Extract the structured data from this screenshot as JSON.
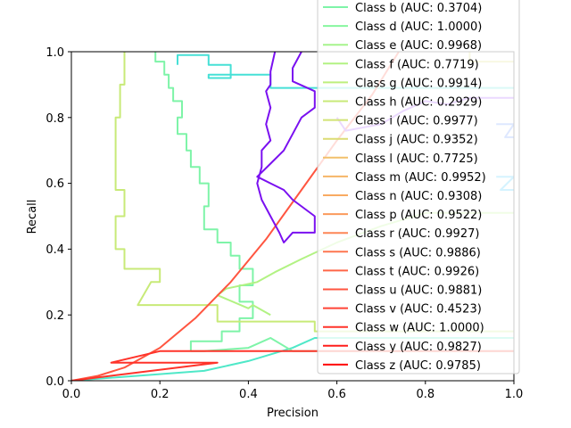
{
  "chart_data": {
    "type": "line",
    "title": "",
    "xlabel": "Precision",
    "ylabel": "Recall",
    "xlim": [
      0.0,
      1.0
    ],
    "ylim": [
      0.0,
      1.0
    ],
    "x_ticks": [
      "0.0",
      "0.2",
      "0.4",
      "0.6",
      "0.8",
      "1.0"
    ],
    "y_ticks": [
      "0.0",
      "0.2",
      "0.4",
      "0.6",
      "0.8",
      "1.0"
    ],
    "grid": false,
    "legend_position": "upper-right",
    "legend_entries": [
      {
        "label": "Class b (AUC: 0.3704)",
        "color": "#7ef4a8"
      },
      {
        "label": "Class d (AUC: 1.0000)",
        "color": "#86f69f"
      },
      {
        "label": "Class e (AUC: 0.9968)",
        "color": "#a6f48c"
      },
      {
        "label": "Class f (AUC: 0.7719)",
        "color": "#b2f283"
      },
      {
        "label": "Class g (AUC: 0.9914)",
        "color": "#bdef7d"
      },
      {
        "label": "Class h (AUC: 0.2929)",
        "color": "#c8ea78"
      },
      {
        "label": "Class i (AUC: 0.9977)",
        "color": "#d2e375"
      },
      {
        "label": "Class j (AUC: 0.9352)",
        "color": "#dcdc73"
      },
      {
        "label": "Class l (AUC: 0.7725)",
        "color": "#f2c06b"
      },
      {
        "label": "Class m (AUC: 0.9952)",
        "color": "#f6b567"
      },
      {
        "label": "Class n (AUC: 0.9308)",
        "color": "#f9aa62"
      },
      {
        "label": "Class p (AUC: 0.9522)",
        "color": "#fb9a5c"
      },
      {
        "label": "Class r (AUC: 0.9927)",
        "color": "#fd8656"
      },
      {
        "label": "Class s (AUC: 0.9886)",
        "color": "#fe7650"
      },
      {
        "label": "Class t (AUC: 0.9926)",
        "color": "#ff6648"
      },
      {
        "label": "Class u (AUC: 0.9881)",
        "color": "#ff5540"
      },
      {
        "label": "Class v (AUC: 0.4523)",
        "color": "#ff4436"
      },
      {
        "label": "Class w (AUC: 1.0000)",
        "color": "#ff332a"
      },
      {
        "label": "Class y (AUC: 0.9827)",
        "color": "#ff1d1a"
      },
      {
        "label": "Class z (AUC: 0.9785)",
        "color": "#ff0000"
      }
    ],
    "series": [
      {
        "color": "#4fe8c8",
        "points": [
          [
            0.0,
            0.0
          ],
          [
            0.3,
            0.03
          ],
          [
            0.4,
            0.06
          ],
          [
            0.5,
            0.1
          ],
          [
            0.55,
            0.13
          ],
          [
            1.0,
            0.13
          ]
        ]
      },
      {
        "color": "#46e0d6",
        "points": [
          [
            0.24,
            0.96
          ],
          [
            0.24,
            0.99
          ],
          [
            0.31,
            0.99
          ],
          [
            0.31,
            0.96
          ],
          [
            0.36,
            0.96
          ],
          [
            0.36,
            0.92
          ],
          [
            0.31,
            0.92
          ],
          [
            0.31,
            0.93
          ],
          [
            0.45,
            0.93
          ],
          [
            0.45,
            0.89
          ],
          [
            1.0,
            0.89
          ]
        ]
      },
      {
        "color": "#7ef4a8",
        "points": [
          [
            0.19,
            1.0
          ],
          [
            0.19,
            0.97
          ],
          [
            0.21,
            0.97
          ],
          [
            0.21,
            0.93
          ],
          [
            0.22,
            0.93
          ],
          [
            0.22,
            0.89
          ],
          [
            0.23,
            0.89
          ],
          [
            0.23,
            0.85
          ],
          [
            0.25,
            0.85
          ],
          [
            0.25,
            0.8
          ],
          [
            0.24,
            0.8
          ],
          [
            0.24,
            0.75
          ],
          [
            0.26,
            0.75
          ],
          [
            0.26,
            0.7
          ],
          [
            0.27,
            0.7
          ],
          [
            0.27,
            0.65
          ],
          [
            0.29,
            0.65
          ],
          [
            0.29,
            0.6
          ],
          [
            0.31,
            0.6
          ],
          [
            0.31,
            0.53
          ],
          [
            0.3,
            0.53
          ],
          [
            0.3,
            0.46
          ],
          [
            0.33,
            0.46
          ],
          [
            0.33,
            0.42
          ],
          [
            0.36,
            0.42
          ],
          [
            0.36,
            0.38
          ],
          [
            0.38,
            0.38
          ],
          [
            0.38,
            0.34
          ],
          [
            0.41,
            0.34
          ],
          [
            0.41,
            0.29
          ],
          [
            0.38,
            0.29
          ],
          [
            0.38,
            0.24
          ],
          [
            0.41,
            0.24
          ],
          [
            0.41,
            0.19
          ],
          [
            0.38,
            0.19
          ],
          [
            0.38,
            0.15
          ],
          [
            0.34,
            0.15
          ],
          [
            0.34,
            0.12
          ],
          [
            0.27,
            0.12
          ],
          [
            0.27,
            0.09
          ],
          [
            0.3,
            0.09
          ],
          [
            0.4,
            0.1
          ],
          [
            0.45,
            0.13
          ],
          [
            0.5,
            0.09
          ],
          [
            1.0,
            0.09
          ]
        ]
      },
      {
        "color": "#b2f283",
        "points": [
          [
            0.45,
            0.2
          ],
          [
            0.41,
            0.23
          ],
          [
            0.4,
            0.22
          ],
          [
            0.33,
            0.26
          ],
          [
            0.35,
            0.28
          ],
          [
            0.42,
            0.3
          ],
          [
            0.46,
            0.33
          ],
          [
            0.52,
            0.37
          ],
          [
            0.6,
            0.42
          ],
          [
            0.7,
            0.47
          ],
          [
            0.8,
            0.51
          ],
          [
            1.0,
            0.51
          ]
        ]
      },
      {
        "color": "#c8ea78",
        "points": [
          [
            0.12,
            1.0
          ],
          [
            0.12,
            0.9
          ],
          [
            0.11,
            0.9
          ],
          [
            0.11,
            0.8
          ],
          [
            0.1,
            0.8
          ],
          [
            0.1,
            0.67
          ],
          [
            0.1,
            0.58
          ],
          [
            0.12,
            0.58
          ],
          [
            0.12,
            0.5
          ],
          [
            0.1,
            0.5
          ],
          [
            0.1,
            0.4
          ],
          [
            0.12,
            0.4
          ],
          [
            0.12,
            0.34
          ],
          [
            0.2,
            0.34
          ],
          [
            0.2,
            0.3
          ],
          [
            0.18,
            0.3
          ],
          [
            0.15,
            0.23
          ],
          [
            0.33,
            0.23
          ],
          [
            0.33,
            0.18
          ],
          [
            0.55,
            0.18
          ],
          [
            0.55,
            0.15
          ],
          [
            1.0,
            0.15
          ]
        ]
      },
      {
        "color": "#dcdc73",
        "points": [
          [
            0.9,
            1.0
          ],
          [
            0.9,
            0.97
          ],
          [
            1.0,
            0.97
          ]
        ]
      },
      {
        "color": "#ff5540",
        "points": [
          [
            0.0,
            0.0
          ],
          [
            0.06,
            0.015
          ],
          [
            0.12,
            0.04
          ],
          [
            0.2,
            0.1
          ],
          [
            0.28,
            0.19
          ],
          [
            0.36,
            0.3
          ],
          [
            0.44,
            0.43
          ],
          [
            0.52,
            0.58
          ],
          [
            0.6,
            0.73
          ],
          [
            0.68,
            0.87
          ],
          [
            0.74,
            1.0
          ]
        ]
      },
      {
        "color": "#ff332a",
        "points": [
          [
            0.0,
            0.0
          ],
          [
            0.33,
            0.055
          ],
          [
            0.09,
            0.055
          ],
          [
            0.2,
            0.09
          ],
          [
            1.0,
            0.09
          ]
        ]
      },
      {
        "color": "#7a10f0",
        "points": [
          [
            0.46,
            1.0
          ],
          [
            0.45,
            0.94
          ],
          [
            0.45,
            0.9
          ],
          [
            0.44,
            0.88
          ],
          [
            0.45,
            0.83
          ],
          [
            0.44,
            0.78
          ],
          [
            0.45,
            0.73
          ],
          [
            0.43,
            0.7
          ],
          [
            0.43,
            0.65
          ],
          [
            0.42,
            0.6
          ],
          [
            0.43,
            0.55
          ],
          [
            0.45,
            0.5
          ],
          [
            0.47,
            0.45
          ],
          [
            0.48,
            0.42
          ],
          [
            0.5,
            0.45
          ],
          [
            0.55,
            0.45
          ],
          [
            0.55,
            0.5
          ],
          [
            0.5,
            0.55
          ],
          [
            0.48,
            0.58
          ],
          [
            0.45,
            0.6
          ],
          [
            0.42,
            0.62
          ],
          [
            0.45,
            0.66
          ],
          [
            0.48,
            0.7
          ],
          [
            0.5,
            0.75
          ],
          [
            0.52,
            0.8
          ],
          [
            0.55,
            0.83
          ],
          [
            0.55,
            0.88
          ],
          [
            0.5,
            0.91
          ],
          [
            0.5,
            0.95
          ],
          [
            0.52,
            1.0
          ]
        ]
      },
      {
        "color": "#5a8cff",
        "points": [
          [
            0.96,
            0.78
          ],
          [
            1.0,
            0.78
          ],
          [
            0.98,
            0.74
          ],
          [
            1.0,
            0.74
          ]
        ]
      },
      {
        "color": "#30c0ff",
        "points": [
          [
            0.96,
            0.62
          ],
          [
            1.0,
            0.62
          ],
          [
            0.97,
            0.58
          ],
          [
            1.0,
            0.58
          ]
        ]
      },
      {
        "color": "#9a40ff",
        "points": [
          [
            0.6,
            0.8
          ],
          [
            0.62,
            0.76
          ],
          [
            0.7,
            0.78
          ],
          [
            0.75,
            0.82
          ],
          [
            0.8,
            0.85
          ],
          [
            0.85,
            0.84
          ],
          [
            0.9,
            0.86
          ],
          [
            1.0,
            0.86
          ]
        ]
      }
    ]
  }
}
